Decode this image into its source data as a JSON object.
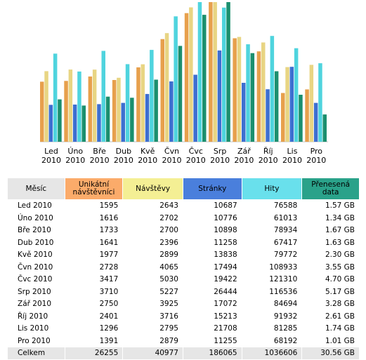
{
  "colors": {
    "uniq": "#e7a04c",
    "visits": "#e8d583",
    "pages": "#3d6fd0",
    "hits": "#4fd4de",
    "bandwidth": "#1b8f6e"
  },
  "chart_data": {
    "type": "bar",
    "categories": [
      "Led 2010",
      "Úno 2010",
      "Bře 2010",
      "Dub 2010",
      "Kvě 2010",
      "Čvn 2010",
      "Čvc 2010",
      "Srp 2010",
      "Zář 2010",
      "Říj 2010",
      "Lis 2010",
      "Pro 2010"
    ],
    "month_labels": [
      [
        "Led",
        "2010"
      ],
      [
        "Úno",
        "2010"
      ],
      [
        "Bře",
        "2010"
      ],
      [
        "Dub",
        "2010"
      ],
      [
        "Kvě",
        "2010"
      ],
      [
        "Čvn",
        "2010"
      ],
      [
        "Čvc",
        "2010"
      ],
      [
        "Srp",
        "2010"
      ],
      [
        "Zář",
        "2010"
      ],
      [
        "Říj",
        "2010"
      ],
      [
        "Lis",
        "2010"
      ],
      [
        "Pro",
        "2010"
      ]
    ],
    "series": [
      {
        "key": "uniq",
        "values": [
          1595,
          1616,
          1733,
          1641,
          1977,
          2728,
          3417,
          3710,
          2750,
          2401,
          1296,
          1391
        ]
      },
      {
        "key": "visits",
        "values": [
          2643,
          2702,
          2700,
          2396,
          2899,
          4065,
          5030,
          5227,
          3925,
          3716,
          2795,
          2879
        ]
      },
      {
        "key": "pages",
        "values": [
          10687,
          10776,
          10898,
          11258,
          13838,
          17494,
          19422,
          26444,
          17072,
          15213,
          21708,
          11255
        ]
      },
      {
        "key": "hits",
        "values": [
          76588,
          61013,
          78934,
          67417,
          79772,
          108933,
          121310,
          116536,
          84694,
          91932,
          81285,
          68192
        ]
      },
      {
        "key": "bandwidth",
        "values": [
          1.57,
          1.34,
          1.67,
          1.63,
          2.3,
          3.55,
          4.7,
          5.17,
          3.28,
          2.61,
          1.74,
          1.01
        ]
      }
    ]
  },
  "table": {
    "headers": [
      "Měsíc",
      "Unikátní návštěvníci",
      "Návštěvy",
      "Stránky",
      "Hity",
      "Přenesená data"
    ],
    "rows": [
      [
        "Led 2010",
        "1595",
        "2643",
        "10687",
        "76588",
        "1.57 GB"
      ],
      [
        "Úno 2010",
        "1616",
        "2702",
        "10776",
        "61013",
        "1.34 GB"
      ],
      [
        "Bře 2010",
        "1733",
        "2700",
        "10898",
        "78934",
        "1.67 GB"
      ],
      [
        "Dub 2010",
        "1641",
        "2396",
        "11258",
        "67417",
        "1.63 GB"
      ],
      [
        "Kvě 2010",
        "1977",
        "2899",
        "13838",
        "79772",
        "2.30 GB"
      ],
      [
        "Čvn 2010",
        "2728",
        "4065",
        "17494",
        "108933",
        "3.55 GB"
      ],
      [
        "Čvc 2010",
        "3417",
        "5030",
        "19422",
        "121310",
        "4.70 GB"
      ],
      [
        "Srp 2010",
        "3710",
        "5227",
        "26444",
        "116536",
        "5.17 GB"
      ],
      [
        "Zář 2010",
        "2750",
        "3925",
        "17072",
        "84694",
        "3.28 GB"
      ],
      [
        "Říj 2010",
        "2401",
        "3716",
        "15213",
        "91932",
        "2.61 GB"
      ],
      [
        "Lis 2010",
        "1296",
        "2795",
        "21708",
        "81285",
        "1.74 GB"
      ],
      [
        "Pro 2010",
        "1391",
        "2879",
        "11255",
        "68192",
        "1.01 GB"
      ]
    ],
    "total": [
      "Celkem",
      "26255",
      "40977",
      "186065",
      "1036606",
      "30.56 GB"
    ]
  }
}
